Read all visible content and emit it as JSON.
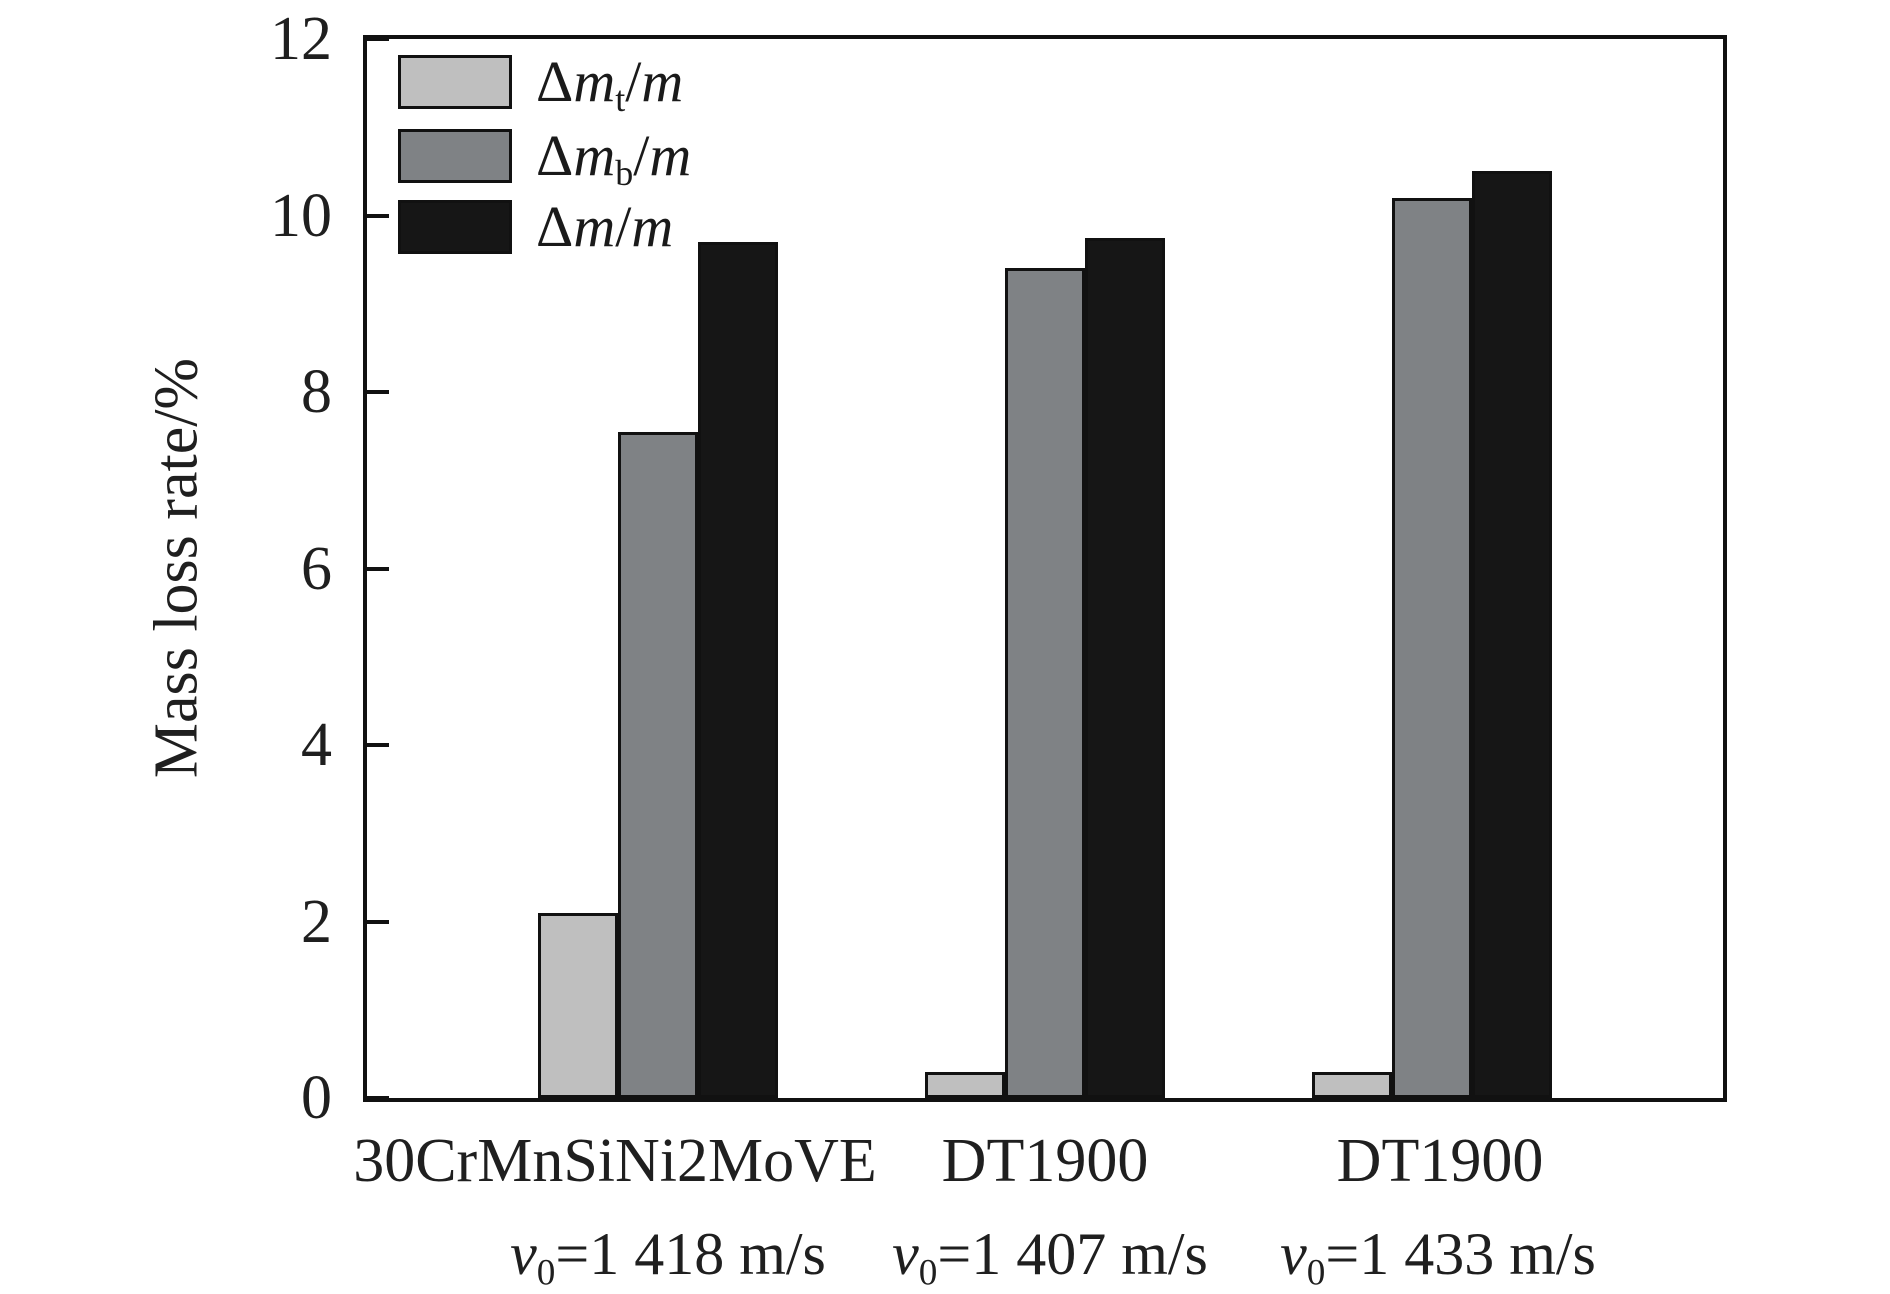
{
  "chart_data": {
    "type": "bar",
    "title": "",
    "xlabel": "",
    "ylabel": "Mass loss rate/%",
    "ylim": [
      0,
      12
    ],
    "yticks": [
      0,
      2,
      4,
      6,
      8,
      10,
      12
    ],
    "grid": false,
    "legend_position": "top-left-inside",
    "categories": [
      "30CrMnSiNi2MoVE",
      "DT1900",
      "DT1900"
    ],
    "category_sublabels": [
      {
        "symbol": "v",
        "subscript": "0",
        "rest": "=1 418 m/s"
      },
      {
        "symbol": "v",
        "subscript": "0",
        "rest": "=1 407 m/s"
      },
      {
        "symbol": "v",
        "subscript": "0",
        "rest": "=1 433 m/s"
      }
    ],
    "series": [
      {
        "key": "dmt",
        "name": "Δmt/m",
        "label_parts": {
          "prefix": "Δ",
          "symbol": "m",
          "subscript": "t",
          "divider": "/",
          "denominator": "m"
        },
        "color": "#bfbfbf",
        "values": [
          2.1,
          0.3,
          0.3
        ]
      },
      {
        "key": "dmb",
        "name": "Δmb/m",
        "label_parts": {
          "prefix": "Δ",
          "symbol": "m",
          "subscript": "b",
          "divider": "/",
          "denominator": "m"
        },
        "color": "#7f8285",
        "values": [
          7.55,
          9.4,
          10.2
        ]
      },
      {
        "key": "dm",
        "name": "Δm/m",
        "label_parts": {
          "prefix": "Δ",
          "symbol": "m",
          "subscript": "",
          "divider": "/",
          "denominator": "m"
        },
        "color": "#161616",
        "values": [
          9.7,
          9.75,
          10.5
        ]
      }
    ],
    "axis_color": "#111111",
    "bar_outline_color": "#111111",
    "background_color": "#ffffff"
  }
}
